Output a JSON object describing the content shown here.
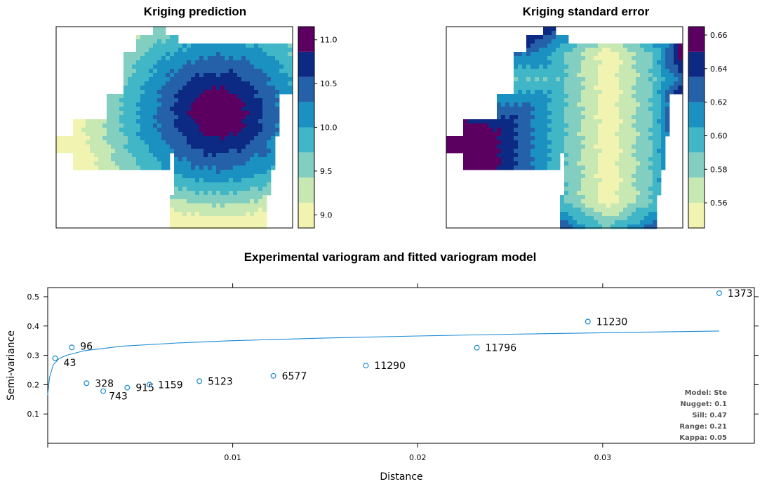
{
  "chart_data": [
    {
      "type": "heatmap",
      "title": "Kriging prediction",
      "legend_ticks": [
        "9.0",
        "9.5",
        "10.0",
        "10.5",
        "11.0"
      ],
      "legend_levels": [
        8.85,
        9.15,
        9.4,
        9.65,
        9.9,
        10.15,
        10.4,
        10.65,
        10.9,
        11.15
      ],
      "palette": [
        "#f1f4b0",
        "#c8e8b3",
        "#82cec0",
        "#40b6c6",
        "#1b91c1",
        "#2561a8",
        "#0c2a84",
        "#5b0061"
      ]
    },
    {
      "type": "heatmap",
      "title": "Kriging standard error",
      "legend_ticks": [
        "0.56",
        "0.58",
        "0.60",
        "0.62",
        "0.64",
        "0.66"
      ],
      "legend_levels": [
        0.545,
        0.555,
        0.565,
        0.575,
        0.585,
        0.595,
        0.605,
        0.615,
        0.625,
        0.635,
        0.645,
        0.655,
        0.665
      ],
      "palette": [
        "#f1f4b0",
        "#c8e8b3",
        "#82cec0",
        "#40b6c6",
        "#1b91c1",
        "#2561a8",
        "#0c2a84",
        "#5b0061"
      ]
    },
    {
      "type": "scatter",
      "title": "Experimental variogram and fitted variogram model",
      "xlabel": "Distance",
      "ylabel": "Semi-variance",
      "xlim": [
        0,
        0.0382
      ],
      "ylim": [
        0,
        0.531
      ],
      "x_ticks": [
        "0.01",
        "0.02",
        "0.03"
      ],
      "x_tick_values": [
        0.01,
        0.02,
        0.03
      ],
      "y_ticks": [
        "0.1",
        "0.2",
        "0.3",
        "0.4",
        "0.5"
      ],
      "y_tick_values": [
        0.1,
        0.2,
        0.3,
        0.4,
        0.5
      ],
      "points": [
        {
          "x": 0.0004,
          "y": 0.29,
          "label": "43"
        },
        {
          "x": 0.0013,
          "y": 0.327,
          "label": "96"
        },
        {
          "x": 0.0021,
          "y": 0.205,
          "label": "328"
        },
        {
          "x": 0.003,
          "y": 0.178,
          "label": "743"
        },
        {
          "x": 0.0043,
          "y": 0.19,
          "label": "915"
        },
        {
          "x": 0.0055,
          "y": 0.2,
          "label": "1159"
        },
        {
          "x": 0.0082,
          "y": 0.212,
          "label": "5123"
        },
        {
          "x": 0.0122,
          "y": 0.23,
          "label": "6577"
        },
        {
          "x": 0.0172,
          "y": 0.265,
          "label": "11290"
        },
        {
          "x": 0.0232,
          "y": 0.326,
          "label": "11796"
        },
        {
          "x": 0.0292,
          "y": 0.415,
          "label": "11230"
        },
        {
          "x": 0.0363,
          "y": 0.512,
          "label": "1373"
        }
      ],
      "model_curve": {
        "x": [
          0,
          0.0001,
          0.0003,
          0.0006,
          0.001,
          0.002,
          0.004,
          0.007,
          0.01,
          0.015,
          0.02,
          0.025,
          0.03,
          0.0363
        ],
        "y": [
          0.165,
          0.225,
          0.268,
          0.288,
          0.3,
          0.316,
          0.331,
          0.342,
          0.35,
          0.359,
          0.366,
          0.372,
          0.377,
          0.383
        ]
      },
      "model_info": [
        "Model: Ste",
        "Nugget: 0.1",
        "Sill: 0.47",
        "Range: 0.21",
        "Kappa: 0.05"
      ]
    }
  ],
  "colors": {
    "point": "#1a8ad4",
    "curve": "#1a8ad4"
  }
}
